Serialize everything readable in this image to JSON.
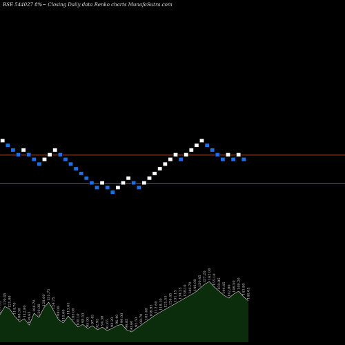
{
  "title": "BSE 544027 8%~  Closing Daily data  Renko  charts MunafaSutra.com",
  "colors": {
    "background": "#000000",
    "up_brick": "#ffffff",
    "down_brick": "#1e6fe6",
    "brick_border": "#000000",
    "hline": "#c0623a",
    "volume_fill": "#0b2d0b",
    "volume_line": "#d8d8d8"
  },
  "chart_data": {
    "type": "renko",
    "bricks": [
      {
        "c": 0,
        "dir": "up"
      },
      {
        "c": 1,
        "dir": "down"
      },
      {
        "c": 2,
        "dir": "down"
      },
      {
        "c": 3,
        "dir": "down"
      },
      {
        "c": 4,
        "dir": "up"
      },
      {
        "c": 5,
        "dir": "down"
      },
      {
        "c": 6,
        "dir": "down"
      },
      {
        "c": 7,
        "dir": "down"
      },
      {
        "c": 8,
        "dir": "up"
      },
      {
        "c": 9,
        "dir": "up"
      },
      {
        "c": 10,
        "dir": "up"
      },
      {
        "c": 11,
        "dir": "down"
      },
      {
        "c": 12,
        "dir": "down"
      },
      {
        "c": 13,
        "dir": "down"
      },
      {
        "c": 14,
        "dir": "down"
      },
      {
        "c": 15,
        "dir": "down"
      },
      {
        "c": 16,
        "dir": "down"
      },
      {
        "c": 17,
        "dir": "down"
      },
      {
        "c": 18,
        "dir": "down"
      },
      {
        "c": 19,
        "dir": "up"
      },
      {
        "c": 20,
        "dir": "down"
      },
      {
        "c": 21,
        "dir": "down"
      },
      {
        "c": 22,
        "dir": "up"
      },
      {
        "c": 23,
        "dir": "up"
      },
      {
        "c": 24,
        "dir": "up"
      },
      {
        "c": 25,
        "dir": "down"
      },
      {
        "c": 26,
        "dir": "down"
      },
      {
        "c": 27,
        "dir": "up"
      },
      {
        "c": 28,
        "dir": "up"
      },
      {
        "c": 29,
        "dir": "up"
      },
      {
        "c": 30,
        "dir": "up"
      },
      {
        "c": 31,
        "dir": "up"
      },
      {
        "c": 32,
        "dir": "up"
      },
      {
        "c": 33,
        "dir": "up"
      },
      {
        "c": 34,
        "dir": "down"
      },
      {
        "c": 35,
        "dir": "up"
      },
      {
        "c": 36,
        "dir": "up"
      },
      {
        "c": 37,
        "dir": "up"
      },
      {
        "c": 38,
        "dir": "up"
      },
      {
        "c": 39,
        "dir": "down"
      },
      {
        "c": 40,
        "dir": "down"
      },
      {
        "c": 41,
        "dir": "down"
      },
      {
        "c": 42,
        "dir": "down"
      },
      {
        "c": 43,
        "dir": "up"
      },
      {
        "c": 44,
        "dir": "down"
      },
      {
        "c": 45,
        "dir": "up"
      },
      {
        "c": 46,
        "dir": "down"
      }
    ],
    "brick_levels": [
      26,
      25,
      24,
      23,
      24,
      23,
      22,
      21,
      22,
      23,
      24,
      23,
      22,
      21,
      20,
      19,
      18,
      17,
      16,
      17,
      16,
      15,
      16,
      17,
      18,
      17,
      16,
      17,
      18,
      19,
      20,
      21,
      22,
      23,
      22,
      23,
      24,
      25,
      26,
      25,
      24,
      23,
      22,
      23,
      22,
      23,
      22
    ],
    "reference_lines": [
      23,
      17
    ],
    "volume": [
      {
        "v": 40,
        "label": "127.35"
      },
      {
        "v": 52,
        "label": "119.45"
      },
      {
        "v": 48,
        "label": "121.00"
      },
      {
        "v": 38,
        "label": "114.70"
      },
      {
        "v": 30,
        "label": "108.30"
      },
      {
        "v": 34,
        "label": "112.80"
      },
      {
        "v": 25,
        "label": "104.65"
      },
      {
        "v": 42,
        "label": "106.70"
      },
      {
        "v": 36,
        "label": "120.00"
      },
      {
        "v": 50,
        "label": "128.60"
      },
      {
        "v": 58,
        "label": "131.75"
      },
      {
        "v": 46,
        "label": "124.75"
      },
      {
        "v": 33,
        "label": "108.00"
      },
      {
        "v": 28,
        "label": "110.60"
      },
      {
        "v": 38,
        "label": "113.65"
      },
      {
        "v": 30,
        "label": "105.00"
      },
      {
        "v": 22,
        "label": "100.10"
      },
      {
        "v": 26,
        "label": "98.50"
      },
      {
        "v": 20,
        "label": "95.90"
      },
      {
        "v": 24,
        "label": "97.45"
      },
      {
        "v": 18,
        "label": "92.95"
      },
      {
        "v": 22,
        "label": "94.30"
      },
      {
        "v": 17,
        "label": "91.65"
      },
      {
        "v": 20,
        "label": "93.20"
      },
      {
        "v": 24,
        "label": "96.40"
      },
      {
        "v": 26,
        "label": "99.00"
      },
      {
        "v": 18,
        "label": "94.85"
      },
      {
        "v": 15,
        "label": "90.60"
      },
      {
        "v": 20,
        "label": "92.50"
      },
      {
        "v": 25,
        "label": "98.70"
      },
      {
        "v": 30,
        "label": "103.40"
      },
      {
        "v": 35,
        "label": "108.95"
      },
      {
        "v": 40,
        "label": "112.60"
      },
      {
        "v": 44,
        "label": "118.10"
      },
      {
        "v": 48,
        "label": "121.55"
      },
      {
        "v": 52,
        "label": "126.45"
      },
      {
        "v": 56,
        "label": "131.15"
      },
      {
        "v": 60,
        "label": "134.25"
      },
      {
        "v": 64,
        "label": "138.10"
      },
      {
        "v": 68,
        "label": "140.70"
      },
      {
        "v": 72,
        "label": "146.00"
      },
      {
        "v": 78,
        "label": "150.45"
      },
      {
        "v": 84,
        "label": "157.20"
      },
      {
        "v": 88,
        "label": "162.00"
      },
      {
        "v": 80,
        "label": "155.10"
      },
      {
        "v": 74,
        "label": "150.85"
      },
      {
        "v": 68,
        "label": "144.65"
      },
      {
        "v": 64,
        "label": "142.80"
      },
      {
        "v": 70,
        "label": "146.50"
      },
      {
        "v": 74,
        "label": "149.20"
      },
      {
        "v": 66,
        "label": "143.80"
      },
      {
        "v": 60,
        "label": "140.05"
      }
    ]
  }
}
